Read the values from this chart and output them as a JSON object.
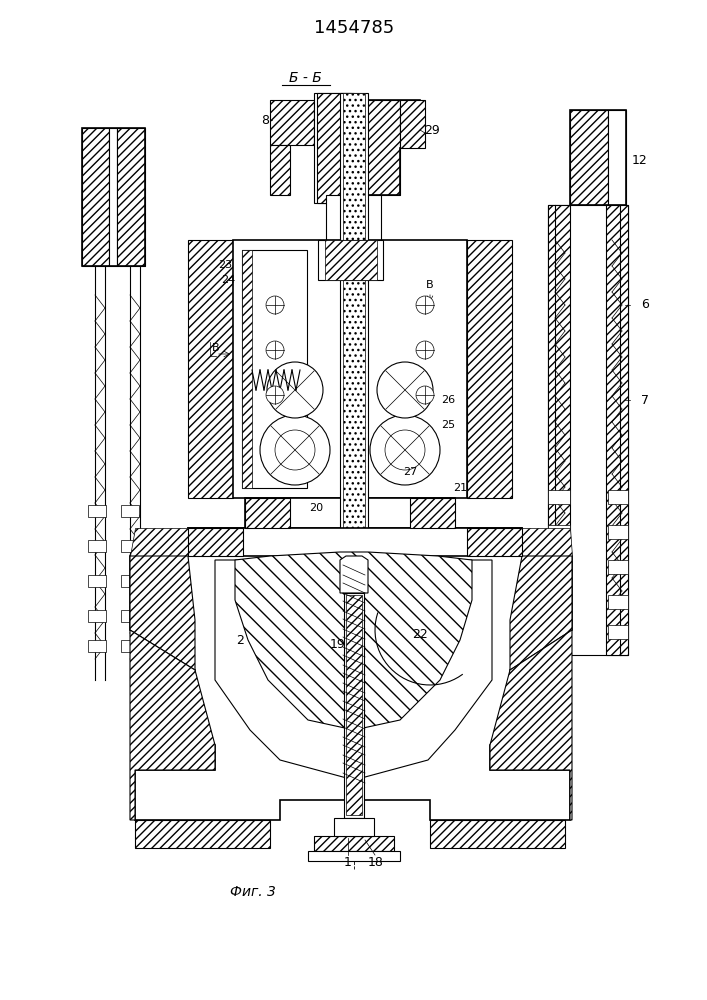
{
  "title": "1454785",
  "fig_label": "Фиг. 3",
  "section_label": "Б - Б",
  "bg_color": "#ffffff",
  "line_color": "#000000"
}
